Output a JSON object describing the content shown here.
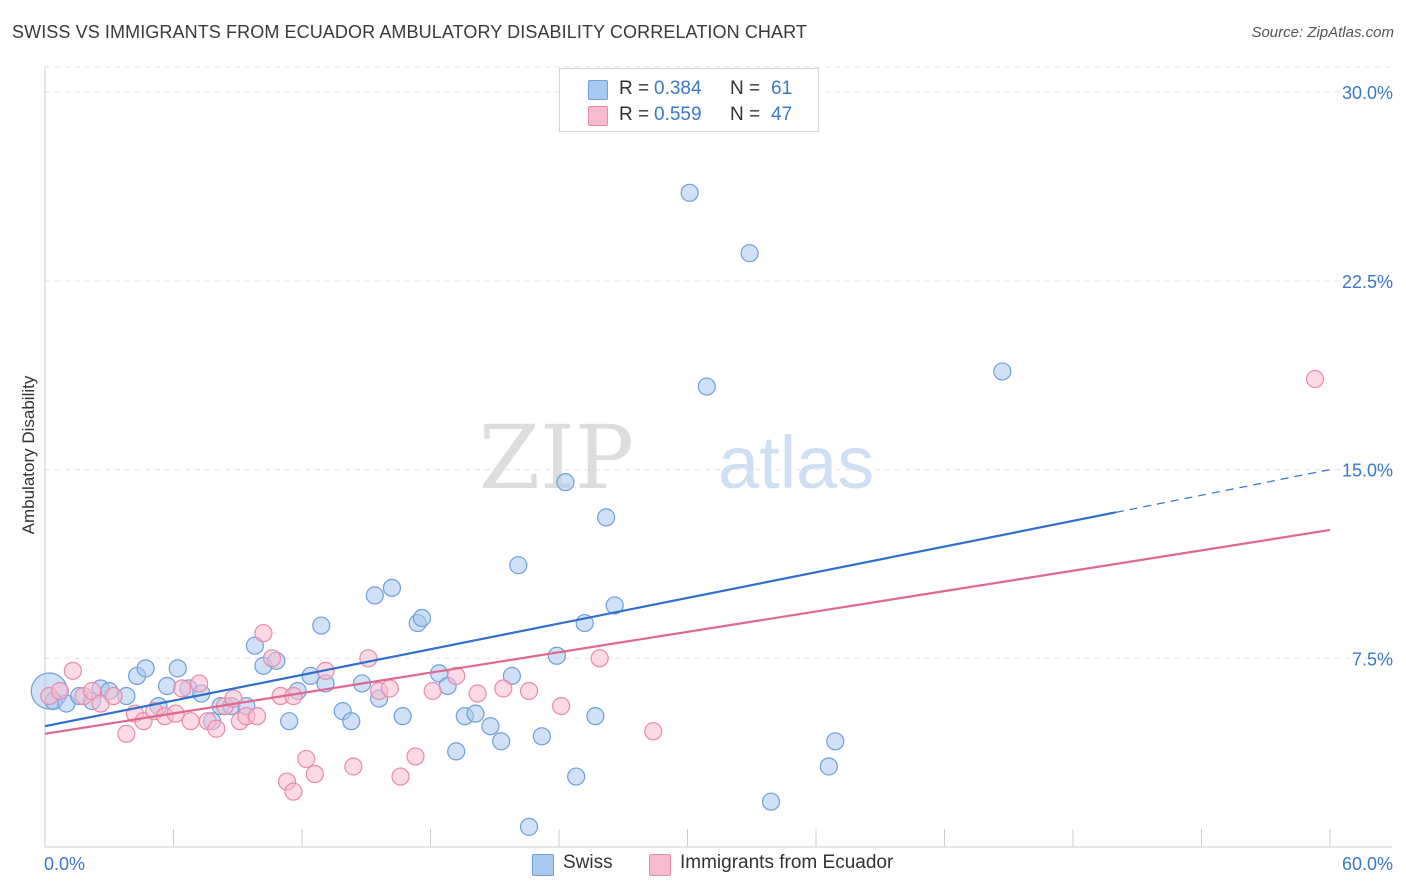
{
  "title": "SWISS VS IMMIGRANTS FROM ECUADOR AMBULATORY DISABILITY CORRELATION CHART",
  "source": "Source: ZipAtlas.com",
  "watermark": {
    "zip": "ZIP",
    "atlas": "atlas"
  },
  "legend": {
    "r_label": "R =",
    "n_label": "N =",
    "swiss": {
      "r": "0.384",
      "n": "61"
    },
    "ecuador": {
      "r": "0.559",
      "n": "47"
    }
  },
  "colors": {
    "swiss_fill": "#a9c8f0",
    "swiss_stroke": "#6f9fd8",
    "swiss_line": "#2f6fce",
    "ecuador_fill": "#f8bcd0",
    "ecuador_stroke": "#e98aa9",
    "ecuador_line": "#e0688f",
    "tick_label": "#3a78c9",
    "grid": "#e3e3e3"
  },
  "chart_data": {
    "type": "scatter",
    "title": "SWISS VS IMMIGRANTS FROM ECUADOR AMBULATORY DISABILITY CORRELATION CHART",
    "xlabel": "",
    "ylabel": "Ambulatory Disability",
    "xlim": [
      0,
      60
    ],
    "ylim": [
      0,
      31
    ],
    "x_tick_labels": [
      "0.0%",
      "60.0%"
    ],
    "y_ticks": [
      7.5,
      15.0,
      22.5,
      30.0
    ],
    "y_tick_labels": [
      "7.5%",
      "15.0%",
      "22.5%",
      "30.0%"
    ],
    "grid": "horizontal dashed",
    "legend_position": "top-center and bottom",
    "series": [
      {
        "name": "Swiss",
        "r": 0.384,
        "n": 61,
        "points": [
          [
            0.2,
            6.2
          ],
          [
            0.4,
            5.8
          ],
          [
            1.0,
            5.7
          ],
          [
            1.6,
            6.0
          ],
          [
            2.2,
            5.8
          ],
          [
            2.6,
            6.3
          ],
          [
            3.0,
            6.2
          ],
          [
            3.8,
            6.0
          ],
          [
            4.3,
            6.8
          ],
          [
            4.7,
            7.1
          ],
          [
            5.3,
            5.6
          ],
          [
            5.7,
            6.4
          ],
          [
            6.2,
            7.1
          ],
          [
            6.7,
            6.3
          ],
          [
            7.3,
            6.1
          ],
          [
            7.8,
            5.0
          ],
          [
            8.2,
            5.6
          ],
          [
            8.7,
            5.6
          ],
          [
            9.4,
            5.6
          ],
          [
            9.8,
            8.0
          ],
          [
            10.2,
            7.2
          ],
          [
            10.8,
            7.4
          ],
          [
            11.4,
            5.0
          ],
          [
            11.8,
            6.2
          ],
          [
            12.4,
            6.8
          ],
          [
            12.9,
            8.8
          ],
          [
            13.1,
            6.5
          ],
          [
            13.9,
            5.4
          ],
          [
            14.3,
            5.0
          ],
          [
            14.8,
            6.5
          ],
          [
            15.4,
            10.0
          ],
          [
            15.6,
            5.9
          ],
          [
            16.2,
            10.3
          ],
          [
            16.7,
            5.2
          ],
          [
            17.4,
            8.9
          ],
          [
            17.6,
            9.1
          ],
          [
            18.4,
            6.9
          ],
          [
            18.8,
            6.4
          ],
          [
            19.2,
            3.8
          ],
          [
            19.6,
            5.2
          ],
          [
            20.1,
            5.3
          ],
          [
            20.8,
            4.8
          ],
          [
            21.3,
            4.2
          ],
          [
            21.8,
            6.8
          ],
          [
            22.1,
            11.2
          ],
          [
            22.6,
            0.8
          ],
          [
            23.2,
            4.4
          ],
          [
            23.9,
            7.6
          ],
          [
            24.3,
            14.5
          ],
          [
            24.8,
            2.8
          ],
          [
            25.2,
            8.9
          ],
          [
            25.7,
            5.2
          ],
          [
            26.2,
            13.1
          ],
          [
            26.6,
            9.6
          ],
          [
            30.1,
            26.0
          ],
          [
            30.9,
            18.3
          ],
          [
            32.9,
            23.6
          ],
          [
            33.9,
            1.8
          ],
          [
            36.6,
            3.2
          ],
          [
            36.9,
            4.2
          ],
          [
            44.7,
            18.9
          ]
        ]
      },
      {
        "name": "Immigrants from Ecuador",
        "r": 0.559,
        "n": 47,
        "points": [
          [
            0.2,
            6.0
          ],
          [
            0.7,
            6.2
          ],
          [
            1.3,
            7.0
          ],
          [
            1.8,
            6.0
          ],
          [
            2.2,
            6.2
          ],
          [
            2.6,
            5.7
          ],
          [
            3.2,
            6.0
          ],
          [
            3.8,
            4.5
          ],
          [
            4.2,
            5.3
          ],
          [
            4.6,
            5.0
          ],
          [
            5.1,
            5.4
          ],
          [
            5.6,
            5.2
          ],
          [
            6.1,
            5.3
          ],
          [
            6.4,
            6.3
          ],
          [
            6.8,
            5.0
          ],
          [
            7.2,
            6.5
          ],
          [
            7.6,
            5.0
          ],
          [
            8.0,
            4.7
          ],
          [
            8.4,
            5.6
          ],
          [
            8.8,
            5.9
          ],
          [
            9.1,
            5.0
          ],
          [
            9.4,
            5.2
          ],
          [
            9.9,
            5.2
          ],
          [
            10.2,
            8.5
          ],
          [
            10.6,
            7.5
          ],
          [
            11.0,
            6.0
          ],
          [
            11.3,
            2.6
          ],
          [
            11.6,
            2.2
          ],
          [
            12.2,
            3.5
          ],
          [
            12.6,
            2.9
          ],
          [
            13.1,
            7.0
          ],
          [
            14.4,
            3.2
          ],
          [
            15.1,
            7.5
          ],
          [
            15.6,
            6.2
          ],
          [
            16.1,
            6.3
          ],
          [
            16.6,
            2.8
          ],
          [
            17.3,
            3.6
          ],
          [
            18.1,
            6.2
          ],
          [
            19.2,
            6.8
          ],
          [
            20.2,
            6.1
          ],
          [
            21.4,
            6.3
          ],
          [
            22.6,
            6.2
          ],
          [
            24.1,
            5.6
          ],
          [
            25.9,
            7.5
          ],
          [
            28.4,
            4.6
          ],
          [
            59.3,
            18.6
          ],
          [
            11.6,
            6.0
          ]
        ]
      }
    ],
    "trendlines": [
      {
        "name": "Swiss",
        "x": [
          0,
          50
        ],
        "y": [
          4.8,
          13.3
        ],
        "extended_to": [
          60,
          15.0
        ]
      },
      {
        "name": "Immigrants from Ecuador",
        "x": [
          0,
          60
        ],
        "y": [
          4.5,
          12.6
        ]
      }
    ]
  }
}
